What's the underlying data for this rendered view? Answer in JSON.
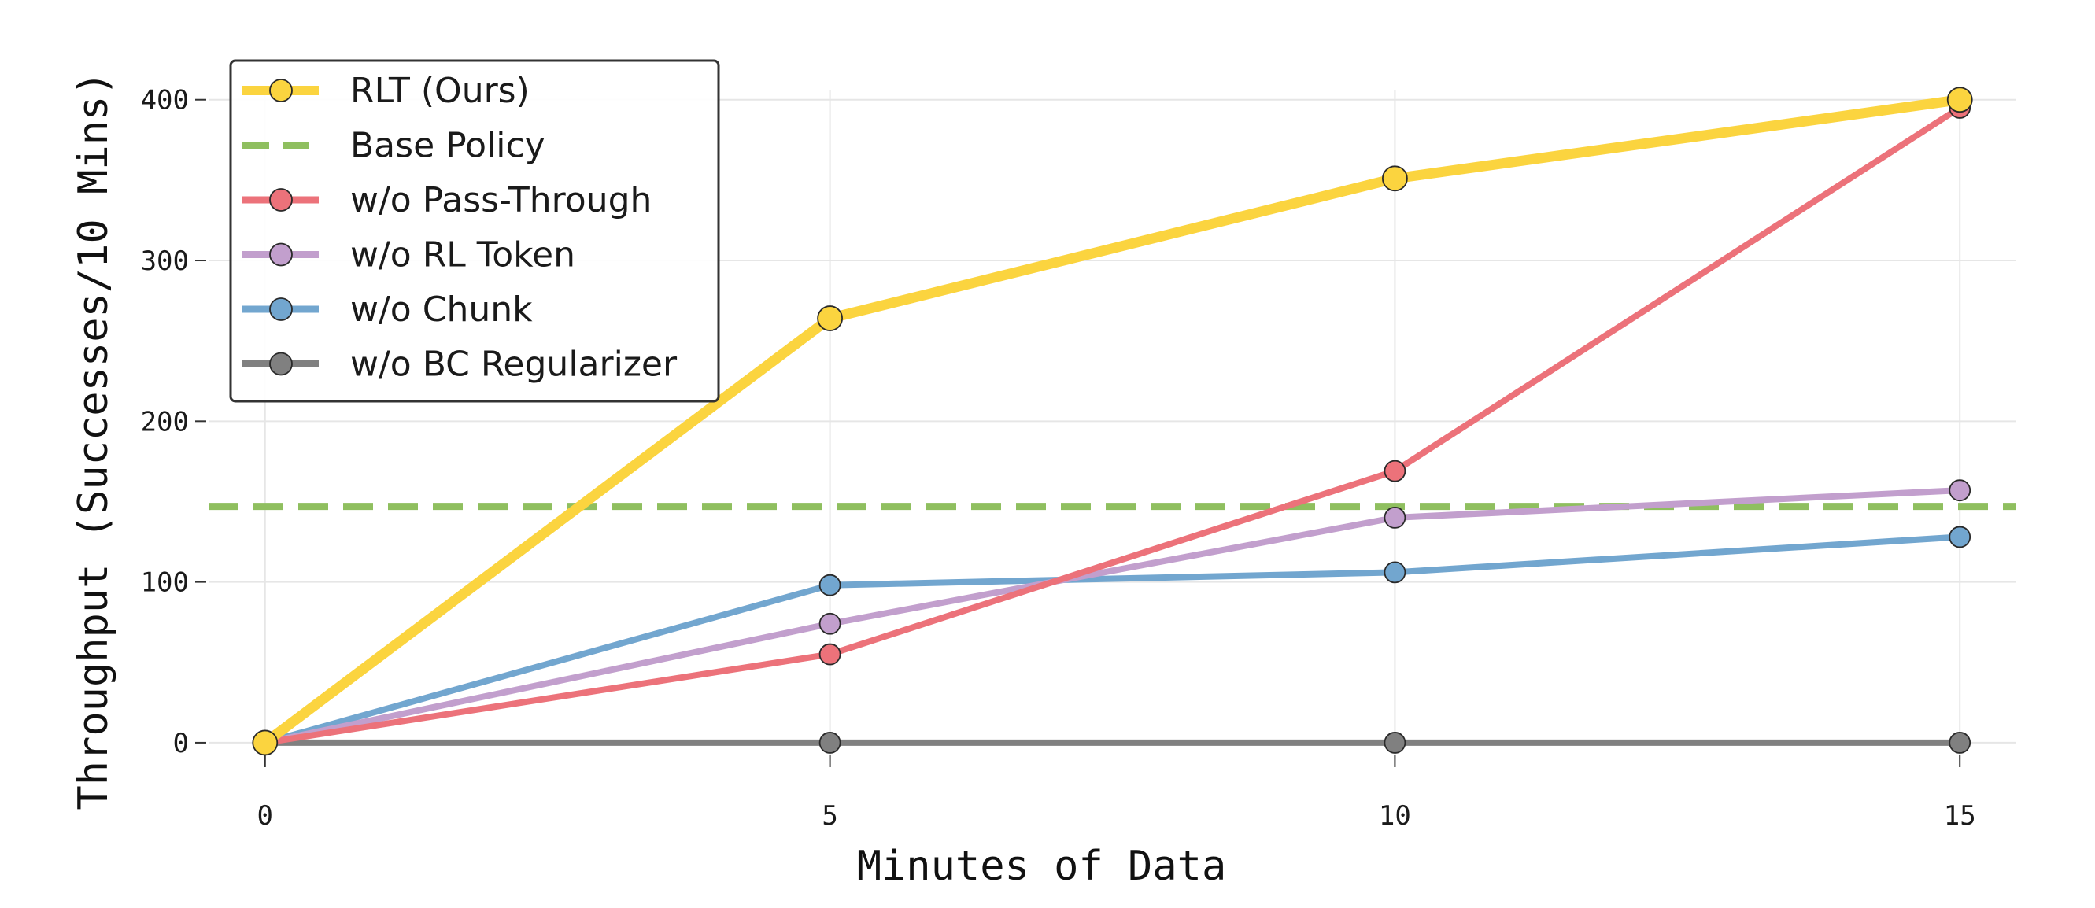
{
  "chart_data": {
    "type": "line",
    "xlabel": "Minutes of Data",
    "ylabel": "Throughput (Successes/10 Mins)",
    "x": [
      0,
      5,
      10,
      15
    ],
    "x_ticks": [
      "0",
      "5",
      "10",
      "15"
    ],
    "y_ticks": [
      "0",
      "100",
      "200",
      "300",
      "400"
    ],
    "xlim": [
      -0.5,
      15.5
    ],
    "ylim": [
      -25,
      440
    ],
    "grid": true,
    "legend_position": "top-left",
    "series": [
      {
        "name": "RLT (Ours)",
        "values": [
          0,
          264,
          351,
          400
        ],
        "color": "#FBD43F",
        "style": "solid",
        "marker": "circle"
      },
      {
        "name": "Base Policy",
        "values": [
          147,
          147,
          147,
          147
        ],
        "color": "#8FBF5F",
        "style": "dashed",
        "marker": "none"
      },
      {
        "name": "w/o Pass-Through",
        "values": [
          0,
          55,
          169,
          395
        ],
        "color": "#EC727A",
        "style": "solid",
        "marker": "circle"
      },
      {
        "name": "w/o RL Token",
        "values": [
          0,
          74,
          140,
          157
        ],
        "color": "#C29FCD",
        "style": "solid",
        "marker": "circle"
      },
      {
        "name": "w/o Chunk",
        "values": [
          0,
          98,
          106,
          128
        ],
        "color": "#72A6CF",
        "style": "solid",
        "marker": "circle"
      },
      {
        "name": "w/o BC Regularizer",
        "values": [
          0,
          0,
          0,
          0
        ],
        "color": "#808080",
        "style": "solid",
        "marker": "circle"
      }
    ]
  }
}
